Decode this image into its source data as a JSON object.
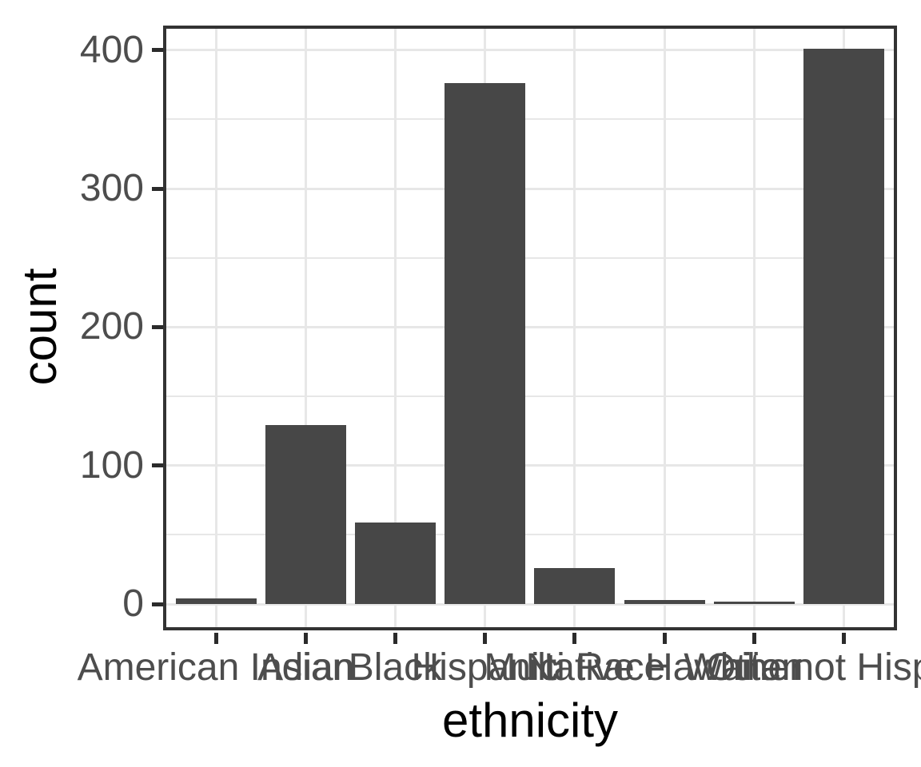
{
  "chart_data": {
    "type": "bar",
    "title": "",
    "xlabel": "ethnicity",
    "ylabel": "count",
    "categories": [
      "American Indian",
      "Asian",
      "Black",
      "Hispanic",
      "Multi Race",
      "Native Hawaiian",
      "Other",
      "White not Hispanic"
    ],
    "values": [
      4,
      129,
      59,
      376,
      26,
      3,
      2,
      401
    ],
    "y_ticks": [
      0,
      100,
      200,
      300,
      400
    ],
    "y_minor_ticks": [
      50,
      150,
      250,
      350
    ],
    "ylim": [
      -20,
      421
    ],
    "grid": "horizontal major+minor, vertical major at each category",
    "legend_position": "none",
    "colors": {
      "bar_fill": "#474747",
      "panel_border": "#333333",
      "tick_mark": "#2b2b2b",
      "gridline": "#e7e7e7",
      "axis_text": "#4d4d4d",
      "axis_title": "#000000",
      "background": "#ffffff"
    }
  }
}
